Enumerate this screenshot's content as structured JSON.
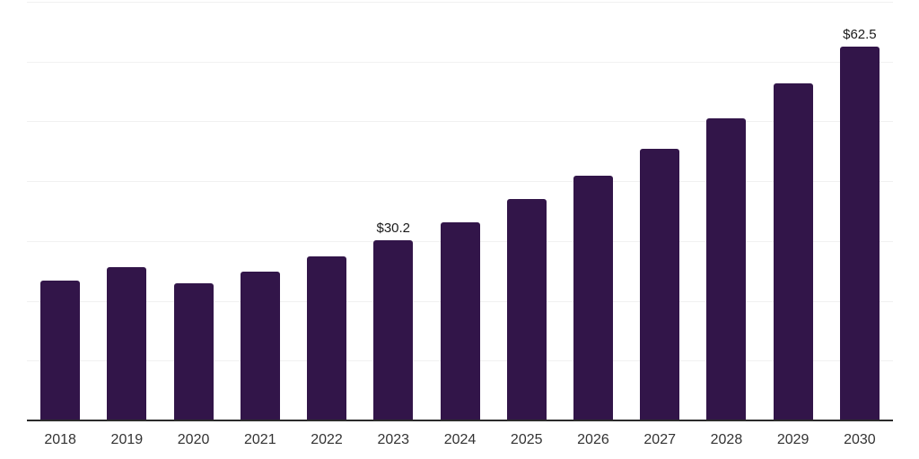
{
  "chart_data": {
    "type": "bar",
    "title": "",
    "xlabel": "",
    "ylabel": "",
    "categories": [
      "2018",
      "2019",
      "2020",
      "2021",
      "2022",
      "2023",
      "2024",
      "2025",
      "2026",
      "2027",
      "2028",
      "2029",
      "2030"
    ],
    "values": [
      23.4,
      25.7,
      23.0,
      24.9,
      27.5,
      30.2,
      33.2,
      37.0,
      40.9,
      45.4,
      50.5,
      56.3,
      62.5
    ],
    "data_labels": [
      "",
      "",
      "",
      "",
      "",
      "$30.2",
      "",
      "",
      "",
      "",
      "",
      "",
      "$62.5"
    ],
    "ylim": [
      0,
      70
    ],
    "gridline_interval": 10,
    "grid_visible": true,
    "legend_visible": false,
    "y_tick_labels_visible": false,
    "colors": {
      "bar": "#321549",
      "gridline": "#f1f1f1",
      "axis_line": "#2b2b2b",
      "x_axis_label": "#333333",
      "data_label": "#1a1a1a",
      "background": "#ffffff"
    }
  }
}
